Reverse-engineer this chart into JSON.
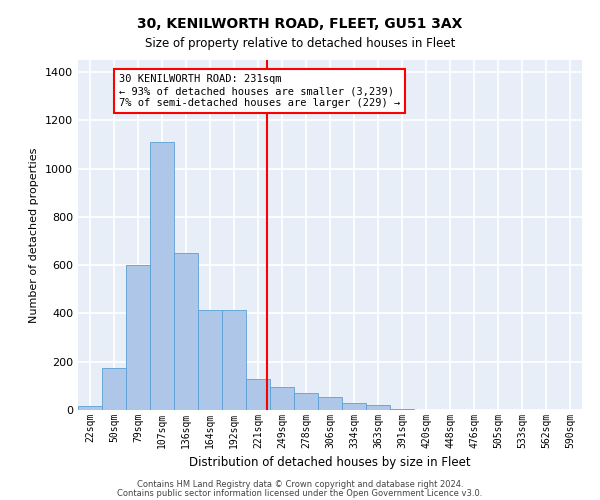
{
  "title": "30, KENILWORTH ROAD, FLEET, GU51 3AX",
  "subtitle": "Size of property relative to detached houses in Fleet",
  "xlabel": "Distribution of detached houses by size in Fleet",
  "ylabel": "Number of detached properties",
  "categories": [
    "22sqm",
    "50sqm",
    "79sqm",
    "107sqm",
    "136sqm",
    "164sqm",
    "192sqm",
    "221sqm",
    "249sqm",
    "278sqm",
    "306sqm",
    "334sqm",
    "363sqm",
    "391sqm",
    "420sqm",
    "448sqm",
    "476sqm",
    "505sqm",
    "533sqm",
    "562sqm",
    "590sqm"
  ],
  "values": [
    18,
    175,
    600,
    1110,
    650,
    415,
    415,
    130,
    95,
    70,
    55,
    30,
    20,
    5,
    0,
    0,
    0,
    0,
    0,
    0,
    0
  ],
  "bar_color": "#aec6e8",
  "bar_edgecolor": "#5a9fd4",
  "vline_color": "red",
  "annotation_text": "30 KENILWORTH ROAD: 231sqm\n← 93% of detached houses are smaller (3,239)\n7% of semi-detached houses are larger (229) →",
  "annotation_box_color": "white",
  "annotation_box_edgecolor": "red",
  "ylim": [
    0,
    1450
  ],
  "yticks": [
    0,
    200,
    400,
    600,
    800,
    1000,
    1200,
    1400
  ],
  "background_color": "#e8eef8",
  "grid_color": "white",
  "footer_line1": "Contains HM Land Registry data © Crown copyright and database right 2024.",
  "footer_line2": "Contains public sector information licensed under the Open Government Licence v3.0."
}
